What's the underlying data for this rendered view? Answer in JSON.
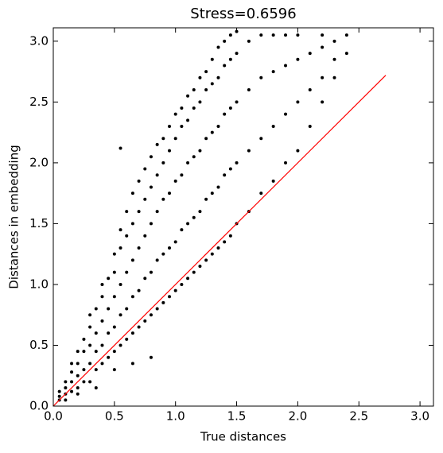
{
  "chart_data": {
    "type": "scatter",
    "title": "Stress=0.6596",
    "x_label": "True distances",
    "y_label": "Distances in embedding",
    "xlim": [
      0,
      3.11
    ],
    "ylim": [
      0,
      3.11
    ],
    "xticks": [
      {
        "value": 0,
        "label": "0.0"
      },
      0.5,
      {
        "value": 1,
        "label": "1.0"
      },
      1.5,
      {
        "value": 2,
        "label": "2.0"
      },
      2.5,
      {
        "value": 3,
        "label": "3.0"
      }
    ],
    "yticks": [
      {
        "value": 0,
        "label": "0.0"
      },
      0.5,
      {
        "value": 1,
        "label": "1.0"
      },
      1.5,
      {
        "value": 2,
        "label": "2.0"
      },
      2.5,
      {
        "value": 3,
        "label": "3.0"
      }
    ],
    "series": [
      {
        "color": "#000000",
        "x": [
          0.05,
          0.05,
          0.05,
          0.1,
          0.1,
          0.1,
          0.1,
          0.15,
          0.15,
          0.15,
          0.15,
          0.2,
          0.2,
          0.2,
          0.2,
          0.2,
          0.25,
          0.25,
          0.25,
          0.25,
          0.3,
          0.3,
          0.3,
          0.3,
          0.3,
          0.35,
          0.35,
          0.35,
          0.35,
          0.35,
          0.4,
          0.4,
          0.4,
          0.4,
          0.4,
          0.45,
          0.45,
          0.45,
          0.45,
          0.5,
          0.5,
          0.5,
          0.5,
          0.5,
          0.5,
          0.55,
          0.55,
          0.55,
          0.55,
          0.55,
          0.55,
          0.6,
          0.6,
          0.6,
          0.6,
          0.6,
          0.65,
          0.65,
          0.65,
          0.65,
          0.65,
          0.65,
          0.7,
          0.7,
          0.7,
          0.7,
          0.7,
          0.75,
          0.75,
          0.75,
          0.75,
          0.75,
          0.8,
          0.8,
          0.8,
          0.8,
          0.8,
          0.8,
          0.85,
          0.85,
          0.85,
          0.85,
          0.85,
          0.9,
          0.9,
          0.9,
          0.9,
          0.9,
          0.95,
          0.95,
          0.95,
          0.95,
          0.95,
          1.0,
          1.0,
          1.0,
          1.0,
          1.0,
          1.05,
          1.05,
          1.05,
          1.05,
          1.05,
          1.1,
          1.1,
          1.1,
          1.1,
          1.1,
          1.15,
          1.15,
          1.15,
          1.15,
          1.15,
          1.2,
          1.2,
          1.2,
          1.2,
          1.2,
          1.25,
          1.25,
          1.25,
          1.25,
          1.25,
          1.3,
          1.3,
          1.3,
          1.3,
          1.3,
          1.35,
          1.35,
          1.35,
          1.35,
          1.35,
          1.4,
          1.4,
          1.4,
          1.4,
          1.4,
          1.45,
          1.45,
          1.45,
          1.45,
          1.45,
          1.5,
          1.5,
          1.5,
          1.5,
          1.5,
          1.6,
          1.6,
          1.6,
          1.6,
          1.7,
          1.7,
          1.7,
          1.7,
          1.8,
          1.8,
          1.8,
          1.8,
          1.9,
          1.9,
          1.9,
          1.9,
          2.0,
          2.0,
          2.0,
          2.0,
          2.1,
          2.1,
          2.1,
          2.2,
          2.2,
          2.2,
          2.2,
          2.3,
          2.3,
          2.3,
          2.4,
          2.4
        ],
        "y": [
          0.05,
          0.08,
          0.12,
          0.1,
          0.15,
          0.2,
          0.05,
          0.12,
          0.2,
          0.28,
          0.35,
          0.15,
          0.25,
          0.35,
          0.45,
          0.1,
          0.2,
          0.3,
          0.45,
          0.55,
          0.2,
          0.35,
          0.5,
          0.65,
          0.75,
          0.3,
          0.45,
          0.6,
          0.8,
          0.15,
          0.35,
          0.5,
          0.7,
          0.9,
          1.0,
          0.4,
          0.6,
          0.8,
          1.05,
          0.45,
          0.65,
          0.9,
          1.1,
          1.25,
          0.3,
          0.5,
          0.75,
          1.0,
          1.3,
          1.45,
          2.12,
          0.55,
          0.8,
          1.1,
          1.4,
          1.6,
          0.6,
          0.9,
          1.2,
          1.5,
          1.75,
          0.35,
          0.65,
          0.95,
          1.3,
          1.6,
          1.85,
          0.7,
          1.05,
          1.4,
          1.7,
          1.95,
          0.75,
          1.1,
          1.5,
          1.8,
          2.05,
          0.4,
          0.8,
          1.2,
          1.6,
          1.9,
          2.15,
          0.85,
          1.25,
          1.7,
          2.0,
          2.2,
          0.9,
          1.3,
          1.75,
          2.1,
          2.3,
          0.95,
          1.35,
          1.85,
          2.2,
          2.4,
          1.0,
          1.45,
          1.9,
          2.3,
          2.45,
          1.05,
          1.5,
          2.0,
          2.35,
          2.55,
          1.1,
          1.55,
          2.05,
          2.45,
          2.6,
          1.15,
          1.6,
          2.1,
          2.5,
          2.7,
          1.2,
          1.7,
          2.2,
          2.6,
          2.75,
          1.25,
          1.75,
          2.25,
          2.65,
          2.85,
          1.3,
          1.8,
          2.3,
          2.7,
          2.95,
          1.35,
          1.9,
          2.4,
          2.8,
          3.0,
          1.4,
          1.95,
          2.45,
          2.85,
          3.05,
          1.5,
          2.0,
          2.5,
          2.9,
          3.08,
          1.6,
          2.1,
          2.6,
          3.0,
          1.75,
          2.2,
          2.7,
          3.05,
          1.85,
          2.3,
          2.75,
          3.05,
          2.0,
          2.4,
          2.8,
          3.05,
          2.1,
          2.5,
          2.85,
          3.05,
          2.3,
          2.6,
          2.9,
          2.5,
          2.7,
          2.95,
          3.05,
          2.7,
          2.85,
          3.0,
          2.9,
          3.05
        ]
      }
    ],
    "lines": [
      {
        "color": "#ff0000",
        "x": [
          0,
          2.72
        ],
        "y": [
          0,
          2.72
        ]
      }
    ]
  }
}
